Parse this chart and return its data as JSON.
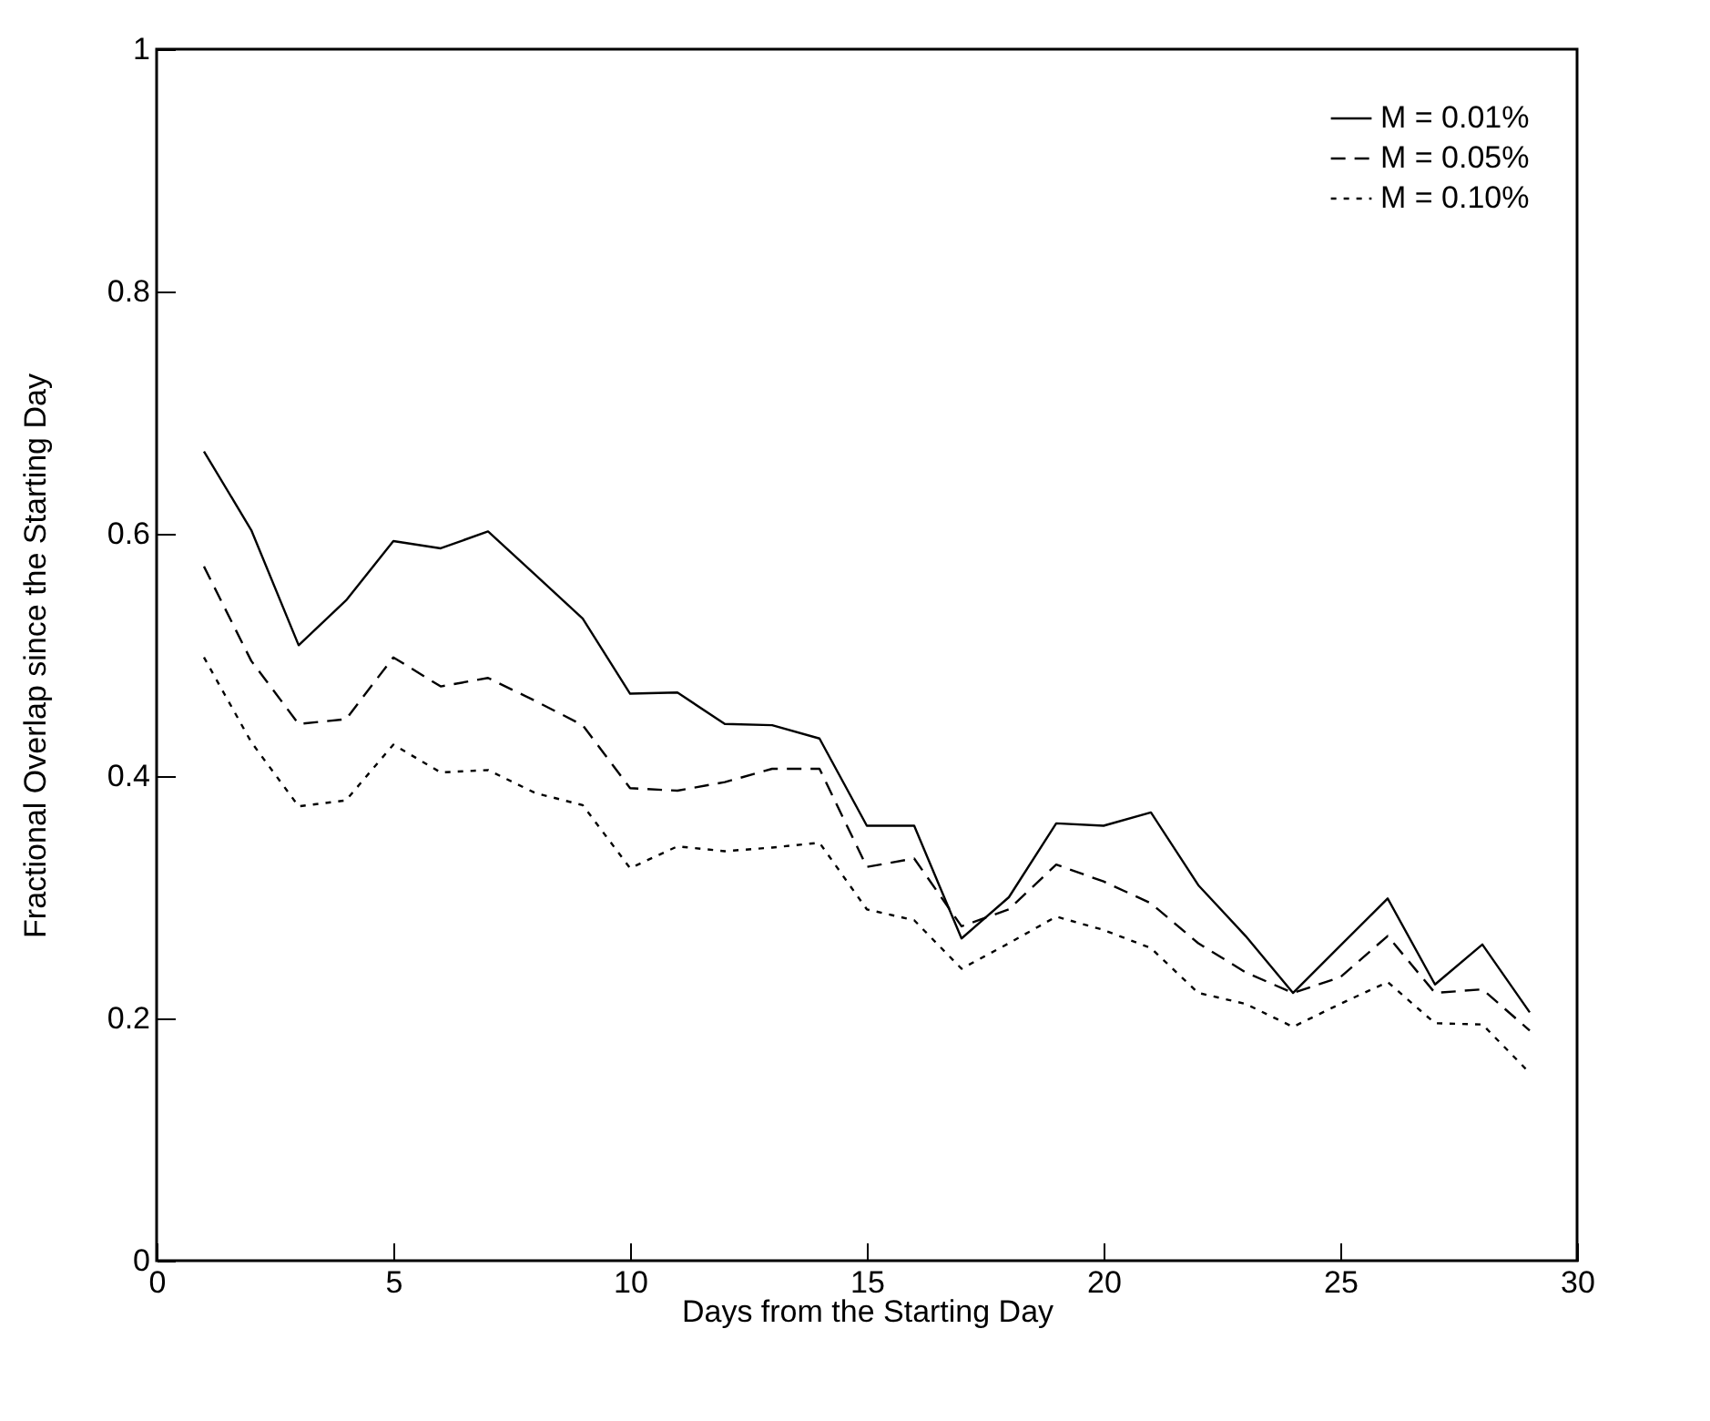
{
  "chart_data": {
    "type": "line",
    "xlabel": "Days from the Starting Day",
    "ylabel": "Fractional Overlap since the Starting Day",
    "x": [
      1,
      2,
      3,
      4,
      5,
      6,
      7,
      8,
      9,
      10,
      11,
      12,
      13,
      14,
      15,
      16,
      17,
      18,
      19,
      20,
      21,
      22,
      23,
      24,
      25,
      26,
      27,
      28,
      29
    ],
    "series": [
      {
        "name": "M = 0.01%",
        "color": "#000000",
        "line_style": "solid",
        "values": [
          0.668,
          0.603,
          0.508,
          0.545,
          0.594,
          0.588,
          0.602,
          0.566,
          0.53,
          0.468,
          0.469,
          0.443,
          0.442,
          0.431,
          0.359,
          0.359,
          0.266,
          0.3,
          0.361,
          0.359,
          0.37,
          0.31,
          0.268,
          0.221,
          0.26,
          0.299,
          0.228,
          0.261,
          0.205
        ]
      },
      {
        "name": "M = 0.05%",
        "color": "#000000",
        "line_style": "dashed",
        "values": [
          0.573,
          0.495,
          0.443,
          0.447,
          0.498,
          0.474,
          0.481,
          0.462,
          0.442,
          0.39,
          0.388,
          0.395,
          0.406,
          0.406,
          0.325,
          0.332,
          0.276,
          0.29,
          0.327,
          0.313,
          0.295,
          0.262,
          0.238,
          0.221,
          0.234,
          0.268,
          0.221,
          0.224,
          0.19
        ]
      },
      {
        "name": "M = 0.10%",
        "color": "#000000",
        "line_style": "dotted",
        "values": [
          0.498,
          0.428,
          0.375,
          0.38,
          0.426,
          0.403,
          0.405,
          0.386,
          0.376,
          0.324,
          0.342,
          0.338,
          0.341,
          0.345,
          0.29,
          0.281,
          0.241,
          0.262,
          0.284,
          0.273,
          0.258,
          0.221,
          0.212,
          0.193,
          0.212,
          0.23,
          0.196,
          0.195,
          0.155
        ]
      }
    ],
    "xlim": [
      0,
      30
    ],
    "xticks": [
      0,
      5,
      10,
      15,
      20,
      25,
      30
    ],
    "ylim": [
      0,
      1
    ],
    "yticks": [
      0,
      0.2,
      0.4,
      0.6,
      0.8,
      1
    ],
    "grid": false,
    "legend": "top right",
    "marker": "none"
  }
}
